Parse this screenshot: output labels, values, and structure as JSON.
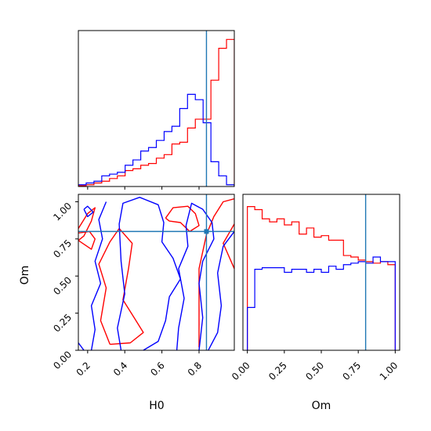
{
  "chart_data": {
    "type": "corner",
    "parameters": [
      "H0",
      "Om"
    ],
    "truths": {
      "H0": 0.84,
      "Om": 0.8
    },
    "colors": {
      "series_a": "#ff0000",
      "series_b": "#0000ff",
      "truth": "#1f77b4"
    },
    "xlabel": "H0",
    "xlabel2": "Om",
    "ylabel": "Om",
    "h0_ticks": [
      "0.2",
      "0.4",
      "0.6",
      "0.8"
    ],
    "om_ticks": [
      "0.00",
      "0.25",
      "0.50",
      "0.75",
      "1.00"
    ],
    "h0_range": [
      0.15,
      0.99
    ],
    "om_range": [
      0.0,
      1.05
    ],
    "hist_h0": {
      "bins": [
        0.15,
        0.192,
        0.234,
        0.276,
        0.318,
        0.36,
        0.402,
        0.444,
        0.486,
        0.528,
        0.57,
        0.612,
        0.654,
        0.696,
        0.738,
        0.78,
        0.822,
        0.864,
        0.906,
        0.948,
        0.99
      ],
      "series": [
        {
          "counts": [
            0.005,
            0.01,
            0.02,
            0.03,
            0.045,
            0.06,
            0.09,
            0.1,
            0.12,
            0.13,
            0.16,
            0.18,
            0.24,
            0.25,
            0.33,
            0.38,
            0.38,
            0.6,
            0.78,
            0.83
          ]
        },
        {
          "counts": [
            0.01,
            0.02,
            0.03,
            0.06,
            0.07,
            0.08,
            0.12,
            0.15,
            0.2,
            0.22,
            0.26,
            0.31,
            0.34,
            0.44,
            0.52,
            0.49,
            0.36,
            0.14,
            0.06,
            0.01
          ]
        }
      ]
    },
    "hist_om": {
      "bins": [
        0.0,
        0.05,
        0.1,
        0.15,
        0.2,
        0.25,
        0.3,
        0.35,
        0.4,
        0.45,
        0.5,
        0.55,
        0.6,
        0.65,
        0.7,
        0.75,
        0.8,
        0.85,
        0.9,
        0.95,
        1.0
      ],
      "series": [
        {
          "counts": [
            0.94,
            0.92,
            0.86,
            0.84,
            0.86,
            0.82,
            0.84,
            0.76,
            0.8,
            0.74,
            0.75,
            0.72,
            0.72,
            0.62,
            0.61,
            0.59,
            0.58,
            0.57,
            0.58,
            0.56
          ]
        },
        {
          "counts": [
            0.28,
            0.53,
            0.54,
            0.54,
            0.54,
            0.51,
            0.53,
            0.53,
            0.51,
            0.53,
            0.51,
            0.55,
            0.53,
            0.56,
            0.57,
            0.58,
            0.57,
            0.61,
            0.58,
            0.58
          ]
        }
      ]
    },
    "contours": [
      {
        "series": "series_a",
        "points": [
          [
            0.32,
            0.04
          ],
          [
            0.27,
            0.2
          ],
          [
            0.3,
            0.42
          ],
          [
            0.26,
            0.58
          ],
          [
            0.32,
            0.73
          ],
          [
            0.37,
            0.82
          ],
          [
            0.44,
            0.72
          ],
          [
            0.42,
            0.55
          ],
          [
            0.39,
            0.34
          ],
          [
            0.45,
            0.22
          ],
          [
            0.5,
            0.12
          ],
          [
            0.43,
            0.05
          ],
          [
            0.32,
            0.04
          ]
        ]
      },
      {
        "series": "series_a",
        "points": [
          [
            0.15,
            0.82
          ],
          [
            0.2,
            0.92
          ],
          [
            0.24,
            0.96
          ],
          [
            0.22,
            0.87
          ],
          [
            0.18,
            0.77
          ],
          [
            0.15,
            0.74
          ]
        ]
      },
      {
        "series": "series_a",
        "points": [
          [
            0.15,
            0.74
          ],
          [
            0.22,
            0.68
          ],
          [
            0.24,
            0.75
          ],
          [
            0.21,
            0.8
          ],
          [
            0.15,
            0.79
          ]
        ]
      },
      {
        "series": "series_a",
        "points": [
          [
            0.8,
            0.02
          ],
          [
            0.8,
            0.55
          ],
          [
            0.84,
            0.78
          ],
          [
            0.88,
            0.9
          ],
          [
            0.93,
            1.0
          ],
          [
            0.99,
            1.02
          ]
        ]
      },
      {
        "series": "series_a",
        "points": [
          [
            0.99,
            0.55
          ],
          [
            0.93,
            0.72
          ],
          [
            0.99,
            0.85
          ]
        ]
      },
      {
        "series": "series_a",
        "points": [
          [
            0.62,
            0.89
          ],
          [
            0.66,
            0.96
          ],
          [
            0.74,
            0.97
          ],
          [
            0.78,
            0.92
          ],
          [
            0.8,
            0.84
          ],
          [
            0.75,
            0.8
          ],
          [
            0.7,
            0.86
          ],
          [
            0.64,
            0.87
          ],
          [
            0.62,
            0.89
          ]
        ]
      },
      {
        "series": "series_b",
        "points": [
          [
            0.38,
            0.0
          ],
          [
            0.36,
            0.15
          ],
          [
            0.4,
            0.38
          ],
          [
            0.38,
            0.6
          ],
          [
            0.37,
            0.85
          ],
          [
            0.39,
            0.99
          ],
          [
            0.48,
            1.03
          ],
          [
            0.58,
            0.98
          ],
          [
            0.61,
            0.86
          ],
          [
            0.6,
            0.73
          ],
          [
            0.66,
            0.62
          ],
          [
            0.7,
            0.48
          ],
          [
            0.64,
            0.36
          ],
          [
            0.62,
            0.2
          ],
          [
            0.58,
            0.06
          ],
          [
            0.5,
            0.0
          ]
        ]
      },
      {
        "series": "series_b",
        "points": [
          [
            0.3,
            1.0
          ],
          [
            0.26,
            0.88
          ],
          [
            0.28,
            0.75
          ],
          [
            0.24,
            0.6
          ],
          [
            0.27,
            0.45
          ],
          [
            0.22,
            0.3
          ],
          [
            0.24,
            0.14
          ],
          [
            0.22,
            0.0
          ]
        ]
      },
      {
        "series": "series_b",
        "points": [
          [
            0.18,
            0.95
          ],
          [
            0.2,
            0.9
          ],
          [
            0.23,
            0.93
          ],
          [
            0.2,
            0.97
          ],
          [
            0.18,
            0.95
          ]
        ]
      },
      {
        "series": "series_b",
        "points": [
          [
            0.15,
            0.05
          ],
          [
            0.18,
            0.0
          ]
        ]
      },
      {
        "series": "series_b",
        "points": [
          [
            0.8,
            0.0
          ],
          [
            0.82,
            0.22
          ],
          [
            0.8,
            0.45
          ],
          [
            0.82,
            0.6
          ],
          [
            0.88,
            0.75
          ],
          [
            0.87,
            0.86
          ],
          [
            0.82,
            0.95
          ],
          [
            0.76,
            0.99
          ],
          [
            0.73,
            0.84
          ],
          [
            0.74,
            0.7
          ],
          [
            0.69,
            0.55
          ],
          [
            0.72,
            0.35
          ],
          [
            0.69,
            0.15
          ],
          [
            0.68,
            0.0
          ]
        ]
      },
      {
        "series": "series_b",
        "points": [
          [
            0.99,
            0.8
          ],
          [
            0.93,
            0.7
          ],
          [
            0.9,
            0.52
          ],
          [
            0.92,
            0.3
          ],
          [
            0.9,
            0.12
          ],
          [
            0.85,
            0.0
          ]
        ]
      }
    ]
  }
}
